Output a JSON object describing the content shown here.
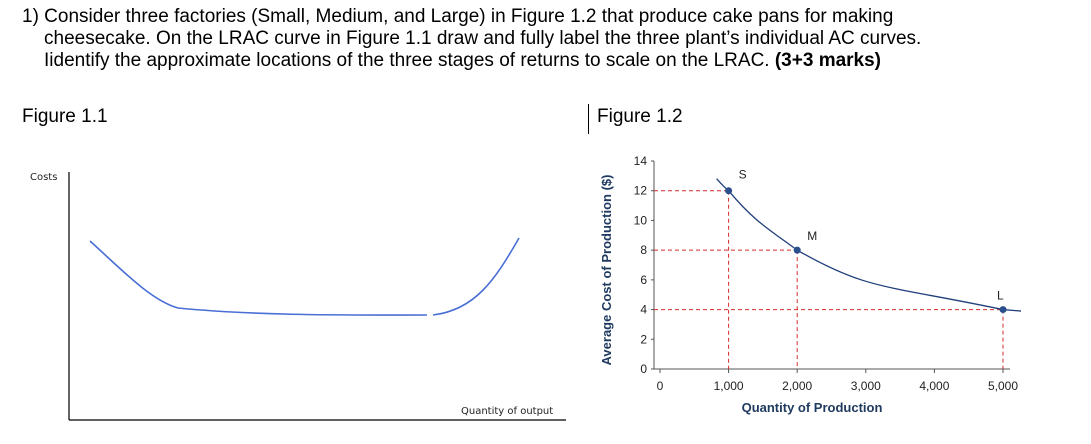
{
  "question": {
    "line1": "1) Consider three factories (Small, Medium, and Large) in Figure 1.2 that produce cake pans for making",
    "line2": "cheesecake. On the LRAC curve in Figure 1.1 draw and fully label the three plant’s individual AC curves.",
    "line3": "Iidentify the approximate locations of the three stages of returns to scale on the LRAC.",
    "marks": "(3+3 marks)"
  },
  "figure1": {
    "title": "Figure 1.1",
    "ylabel": "Costs",
    "xlabel": "Quantity of output",
    "curve_color": "#4a6fd4"
  },
  "figure2": {
    "title": "Figure 1.2",
    "chart_data": {
      "type": "line",
      "xlabel": "Quantity of Production",
      "ylabel": "Average Cost of Production ($)",
      "xlim": [
        0,
        5000
      ],
      "ylim": [
        0,
        14
      ],
      "x_ticks": [
        "0",
        "1,000",
        "2,000",
        "3,000",
        "4,000",
        "5,000"
      ],
      "y_ticks": [
        "0",
        "2",
        "4",
        "6",
        "8",
        "10",
        "12",
        "14"
      ],
      "points": [
        {
          "label": "S",
          "x": 1000,
          "y": 12
        },
        {
          "label": "M",
          "x": 2000,
          "y": 8
        },
        {
          "label": "L",
          "x": 5000,
          "y": 4
        }
      ],
      "curve_color": "#1f3f7a",
      "point_color": "#2b4f8c",
      "guide_color": "#d62c2c"
    }
  }
}
